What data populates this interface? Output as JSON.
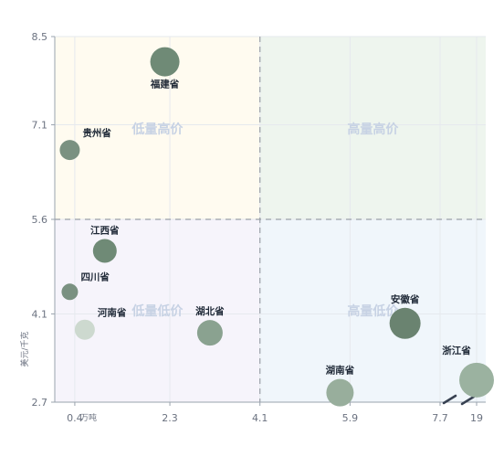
{
  "chart_data": {
    "type": "scatter",
    "title": "",
    "xlabel": "",
    "x_unit": "万吨",
    "ylabel": "美元/千克",
    "x_ticks": [
      {
        "value": 0.4,
        "label": "0.4"
      },
      {
        "value": 2.3,
        "label": "2.3"
      },
      {
        "value": 4.1,
        "label": "4.1"
      },
      {
        "value": 5.9,
        "label": "5.9"
      },
      {
        "value": 7.7,
        "label": "7.7"
      },
      {
        "value": 19,
        "label": "19"
      }
    ],
    "y_ticks": [
      2.7,
      4.1,
      5.6,
      7.1,
      8.5
    ],
    "ylim": [
      2.7,
      8.5
    ],
    "x_break": [
      7.7,
      19
    ],
    "x_divider": 4.1,
    "y_divider": 5.6,
    "quadrants": [
      {
        "label": "低量高价",
        "color": "#fffbf0"
      },
      {
        "label": "高量高价",
        "color": "#eef5ee"
      },
      {
        "label": "低量低价",
        "color": "#f6f4fb"
      },
      {
        "label": "高量低价",
        "color": "#f0f6fb"
      }
    ],
    "points": [
      {
        "name": "福建省",
        "x": 2.2,
        "y": 8.1,
        "size": 16,
        "color": "#6f8a76"
      },
      {
        "name": "贵州省",
        "x": 0.3,
        "y": 6.7,
        "size": 11,
        "color": "#7a9181"
      },
      {
        "name": "江西省",
        "x": 1.0,
        "y": 5.1,
        "size": 13,
        "color": "#6f8a76"
      },
      {
        "name": "四川省",
        "x": 0.3,
        "y": 4.45,
        "size": 9,
        "color": "#7a9181"
      },
      {
        "name": "河南省",
        "x": 0.6,
        "y": 3.85,
        "size": 11,
        "color": "#cdd9cf"
      },
      {
        "name": "湖北省",
        "x": 3.1,
        "y": 3.8,
        "size": 14,
        "color": "#8aa290"
      },
      {
        "name": "湖南省",
        "x": 5.7,
        "y": 2.85,
        "size": 15,
        "color": "#98ae9c"
      },
      {
        "name": "安徽省",
        "x": 7.0,
        "y": 3.95,
        "size": 17,
        "color": "#6a8370"
      },
      {
        "name": "浙江省",
        "x": 19,
        "y": 3.05,
        "size": 19,
        "color": "#9bb2a0"
      }
    ]
  }
}
